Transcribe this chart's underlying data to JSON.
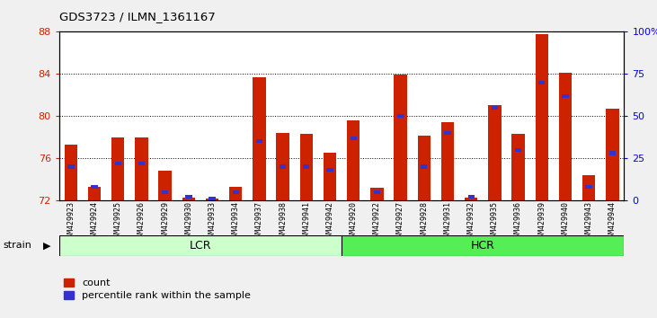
{
  "title": "GDS3723 / ILMN_1361167",
  "samples": [
    "GSM429923",
    "GSM429924",
    "GSM429925",
    "GSM429926",
    "GSM429929",
    "GSM429930",
    "GSM429933",
    "GSM429934",
    "GSM429937",
    "GSM429938",
    "GSM429941",
    "GSM429942",
    "GSM429920",
    "GSM429922",
    "GSM429927",
    "GSM429928",
    "GSM429931",
    "GSM429932",
    "GSM429935",
    "GSM429936",
    "GSM429939",
    "GSM429940",
    "GSM429943",
    "GSM429944"
  ],
  "groups": [
    {
      "name": "LCR",
      "start": 0,
      "end": 12,
      "color": "#ccffcc"
    },
    {
      "name": "HCR",
      "start": 12,
      "end": 24,
      "color": "#55ee55"
    }
  ],
  "count_values": [
    77.3,
    73.3,
    78.0,
    78.0,
    74.8,
    72.3,
    72.2,
    73.3,
    83.7,
    78.4,
    78.3,
    76.5,
    79.6,
    73.2,
    83.9,
    78.1,
    79.4,
    72.3,
    81.0,
    78.3,
    87.8,
    84.1,
    74.4,
    80.7
  ],
  "percentile_values": [
    20,
    8,
    22,
    22,
    5,
    2,
    1,
    5,
    35,
    20,
    20,
    18,
    37,
    5,
    50,
    20,
    40,
    2,
    55,
    30,
    70,
    62,
    8,
    28
  ],
  "ylim_left": [
    72,
    88
  ],
  "ylim_right": [
    0,
    100
  ],
  "yticks_left": [
    72,
    76,
    80,
    84,
    88
  ],
  "yticks_right": [
    0,
    25,
    50,
    75,
    100
  ],
  "ytick_labels_right": [
    "0",
    "25",
    "50",
    "75",
    "100%"
  ],
  "bar_color_red": "#cc2200",
  "bar_color_blue": "#3333cc",
  "bar_width": 0.55,
  "bar_base": 72,
  "grid_color": "#000000",
  "background_color": "#f0f0f0",
  "plot_bg_color": "#ffffff",
  "lcr_color": "#ccffcc",
  "hcr_color": "#55ee55",
  "strain_label": "strain",
  "legend_count": "count",
  "legend_percentile": "percentile rank within the sample"
}
